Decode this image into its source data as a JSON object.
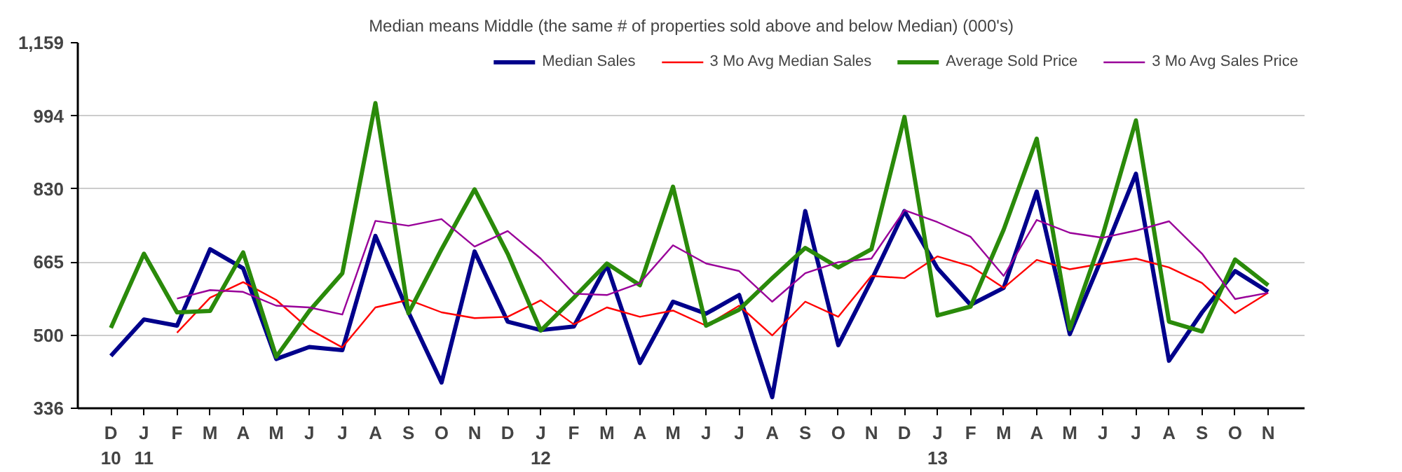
{
  "chart_data": {
    "type": "line",
    "title": "Median means Middle (the same # of properties sold above and below Median) (000's)",
    "categories": [
      "D\n10",
      "J\n11",
      "F",
      "M",
      "A",
      "M",
      "J",
      "J",
      "A",
      "S",
      "O",
      "N",
      "D",
      "J\n12",
      "F",
      "M",
      "A",
      "M",
      "J",
      "J",
      "A",
      "S",
      "O",
      "N",
      "D",
      "J\n13",
      "F",
      "M",
      "A",
      "M",
      "J",
      "J",
      "A",
      "S",
      "O",
      "N"
    ],
    "series": [
      {
        "name": "Median Sales",
        "color": "#00008b",
        "values": [
          454,
          536,
          522,
          694,
          651,
          447,
          474,
          467,
          724,
          552,
          394,
          689,
          531,
          512,
          520,
          658,
          438,
          576,
          549,
          591,
          361,
          780,
          478,
          624,
          780,
          651,
          569,
          607,
          824,
          503,
          680,
          864,
          443,
          552,
          645,
          598
        ]
      },
      {
        "name": "3 Mo Avg Median Sales",
        "color": "#ff0000",
        "values": [
          null,
          null,
          506,
          585,
          620,
          580,
          514,
          473,
          563,
          580,
          552,
          539,
          542,
          579,
          525,
          563,
          542,
          556,
          522,
          567,
          500,
          576,
          542,
          634,
          629,
          678,
          656,
          607,
          670,
          649,
          662,
          673,
          653,
          618,
          550,
          596
        ]
      },
      {
        "name": "Average Sold Price",
        "color": "#2a8a0a",
        "values": [
          517,
          684,
          552,
          555,
          687,
          452,
          555,
          640,
          1023,
          550,
          694,
          829,
          684,
          511,
          585,
          662,
          613,
          835,
          522,
          558,
          629,
          697,
          653,
          694,
          992,
          545,
          565,
          738,
          943,
          514,
          727,
          984,
          531,
          509,
          671,
          613
        ]
      },
      {
        "name": "3 Mo Avg Sales Price",
        "color": "#990099",
        "values": [
          null,
          null,
          583,
          602,
          598,
          567,
          563,
          547,
          758,
          747,
          762,
          700,
          735,
          673,
          594,
          591,
          618,
          703,
          662,
          645,
          576,
          640,
          665,
          673,
          782,
          755,
          722,
          634,
          760,
          731,
          720,
          736,
          757,
          684,
          582,
          596
        ]
      }
    ],
    "ylim": [
      336,
      1159
    ],
    "yticks": [
      336,
      500,
      665,
      830,
      994,
      {
        "value": 1159,
        "label": "1,159"
      }
    ],
    "grid": "y",
    "legend": "top right"
  }
}
